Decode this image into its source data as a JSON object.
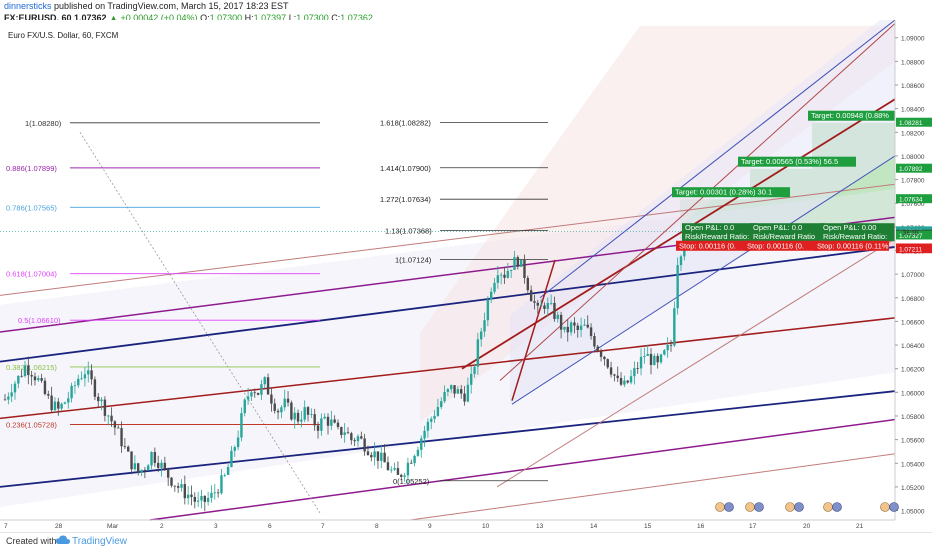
{
  "header": {
    "author": "dinnersticks",
    "published": "published on TradingView.com, March 15, 2017 18:23 EST",
    "ticker": "FX:EURUSD, 60",
    "last": "1.07362",
    "change": "▲ +0.00042 (+0.04%)",
    "o_label": "O:",
    "o": "1.07300",
    "h_label": "H:",
    "h": "1.07397",
    "l_label": "L:",
    "l": "1.07300",
    "c_label": "C:",
    "c": "1.07362"
  },
  "symbol_title": "Euro FX/U.S. Dollar, 60, FXCM",
  "footer": {
    "created_with": "Created with",
    "brand": "TradingView"
  },
  "colors": {
    "up": "#26a69a",
    "down": "#4a4a4a",
    "fib_1": "#333333",
    "fib_886": "#9c27b0",
    "fib_786": "#4aa3df",
    "fib_618": "#e040fb",
    "fib_5": "#e040fb",
    "fib_382": "#8bc34a",
    "fib_236": "#c0392b",
    "pitchfork_red": "#a21c1c",
    "pitchfork_blue": "#1a237e",
    "pitchfork_purple": "#8e1a8e",
    "target_green": "#1e9e3e",
    "stop_red": "#e02020"
  },
  "chart_data": {
    "type": "candlestick",
    "title": "Euro FX/U.S. Dollar, 60, FXCM",
    "xlabel": "",
    "ylabel": "",
    "ylim": [
      1.0492,
      1.0915
    ],
    "x_ticks": [
      "7",
      "28",
      "Mar",
      "2",
      "3",
      "6",
      "7",
      "8",
      "9",
      "10",
      "13",
      "14",
      "15",
      "16",
      "17",
      "20",
      "21"
    ],
    "y_ticks": [
      "1.05000",
      "1.05200",
      "1.05400",
      "1.05600",
      "1.05800",
      "1.06000",
      "1.06200",
      "1.06400",
      "1.06600",
      "1.06800",
      "1.07000",
      "1.07200",
      "1.07400",
      "1.07600",
      "1.07800",
      "1.08000",
      "1.08200",
      "1.08400",
      "1.08600",
      "1.08800",
      "1.09000"
    ],
    "price_labels": [
      {
        "value": 1.08281,
        "text": "1.08281",
        "color": "#1e9e3e"
      },
      {
        "value": 1.07892,
        "text": "1.07892",
        "color": "#1e9e3e"
      },
      {
        "value": 1.07634,
        "text": "1.07634",
        "color": "#1e9e3e"
      },
      {
        "value": 1.07362,
        "text": "1.07362",
        "color": "#26a69a"
      },
      {
        "value": 1.07333,
        "text": "1.07333",
        "color": "#333333"
      },
      {
        "value": 1.07327,
        "text": "1.07327",
        "color": "#1e9e3e"
      },
      {
        "value": 1.07217,
        "text": "1.07217",
        "color": "#e02020"
      },
      {
        "value": 1.07211,
        "text": "1.07211",
        "color": "#e02020"
      }
    ],
    "countdown": "36:19",
    "ohlc_path": [
      [
        0,
        1.0594
      ],
      [
        2,
        1.0605
      ],
      [
        4,
        1.0612
      ],
      [
        6,
        1.0622
      ],
      [
        8,
        1.0618
      ],
      [
        10,
        1.061
      ],
      [
        12,
        1.0598
      ],
      [
        14,
        1.059
      ],
      [
        16,
        1.0585
      ],
      [
        18,
        1.0592
      ],
      [
        20,
        1.06
      ],
      [
        22,
        1.0612
      ],
      [
        24,
        1.0618
      ],
      [
        26,
        1.0608
      ],
      [
        28,
        1.0596
      ],
      [
        30,
        1.0586
      ],
      [
        32,
        1.0576
      ],
      [
        34,
        1.0565
      ],
      [
        36,
        1.0552
      ],
      [
        38,
        1.054
      ],
      [
        40,
        1.0532
      ],
      [
        42,
        1.0537
      ],
      [
        44,
        1.0548
      ],
      [
        46,
        1.0542
      ],
      [
        48,
        1.0533
      ],
      [
        50,
        1.0526
      ],
      [
        52,
        1.052
      ],
      [
        54,
        1.0515
      ],
      [
        56,
        1.0512
      ],
      [
        58,
        1.0505
      ],
      [
        60,
        1.0508
      ],
      [
        62,
        1.0512
      ],
      [
        64,
        1.052
      ],
      [
        66,
        1.0528
      ],
      [
        68,
        1.0545
      ],
      [
        70,
        1.0565
      ],
      [
        72,
        1.059
      ],
      [
        74,
        1.0605
      ],
      [
        76,
        1.06
      ],
      [
        78,
        1.0608
      ],
      [
        80,
        1.0595
      ],
      [
        82,
        1.0585
      ],
      [
        84,
        1.059
      ],
      [
        86,
        1.0582
      ],
      [
        88,
        1.0578
      ],
      [
        90,
        1.0584
      ],
      [
        92,
        1.0576
      ],
      [
        94,
        1.0572
      ],
      [
        96,
        1.0578
      ],
      [
        98,
        1.0574
      ],
      [
        100,
        1.0566
      ],
      [
        102,
        1.0568
      ],
      [
        104,
        1.056
      ],
      [
        106,
        1.0562
      ],
      [
        108,
        1.0556
      ],
      [
        110,
        1.055
      ],
      [
        112,
        1.0546
      ],
      [
        114,
        1.054
      ],
      [
        116,
        1.0533
      ],
      [
        118,
        1.0528
      ],
      [
        120,
        1.0535
      ],
      [
        122,
        1.0545
      ],
      [
        124,
        1.0556
      ],
      [
        126,
        1.0568
      ],
      [
        128,
        1.0578
      ],
      [
        130,
        1.0588
      ],
      [
        132,
        1.0597
      ],
      [
        134,
        1.0603
      ],
      [
        136,
        1.06
      ],
      [
        138,
        1.0598
      ],
      [
        140,
        1.061
      ],
      [
        142,
        1.064
      ],
      [
        144,
        1.0665
      ],
      [
        146,
        1.069
      ],
      [
        148,
        1.0705
      ],
      [
        150,
        1.07
      ],
      [
        152,
        1.0708
      ],
      [
        154,
        1.0712
      ],
      [
        156,
        1.07
      ],
      [
        158,
        1.0682
      ],
      [
        160,
        1.0668
      ],
      [
        162,
        1.0675
      ],
      [
        164,
        1.067
      ],
      [
        166,
        1.0662
      ],
      [
        168,
        1.065
      ],
      [
        170,
        1.0656
      ],
      [
        172,
        1.0652
      ],
      [
        174,
        1.0655
      ],
      [
        176,
        1.0648
      ],
      [
        178,
        1.0638
      ],
      [
        180,
        1.063
      ],
      [
        182,
        1.062
      ],
      [
        184,
        1.0608
      ],
      [
        186,
        1.0605
      ],
      [
        188,
        1.0612
      ],
      [
        190,
        1.0622
      ],
      [
        192,
        1.0632
      ],
      [
        194,
        1.0628
      ],
      [
        196,
        1.0622
      ],
      [
        198,
        1.0632
      ],
      [
        200,
        1.064
      ],
      [
        202,
        1.0712
      ],
      [
        204,
        1.073
      ],
      [
        206,
        1.0736
      ]
    ],
    "fib_retracement": [
      {
        "label": "1(1.08280)",
        "value": 1.0828,
        "color": "#333333"
      },
      {
        "label": "0.886(1.07899)",
        "value": 1.07899,
        "color": "#9c27b0"
      },
      {
        "label": "0.786(1.07565)",
        "value": 1.07565,
        "color": "#4aa3df"
      },
      {
        "label": "0.618(1.07004)",
        "value": 1.07004,
        "color": "#e040fb"
      },
      {
        "label": "0.5(1.06610)",
        "value": 1.0661,
        "color": "#e040fb"
      },
      {
        "label": "0.382(1.06215)",
        "value": 1.06215,
        "color": "#8bc34a"
      },
      {
        "label": "0.236(1.05728)",
        "value": 1.05728,
        "color": "#c0392b"
      }
    ],
    "fib_extension": [
      {
        "label": "1.618(1.08282)",
        "value": 1.08282
      },
      {
        "label": "1.414(1.07900)",
        "value": 1.079
      },
      {
        "label": "1.272(1.07634)",
        "value": 1.07634
      },
      {
        "label": "1.13(1.07368)",
        "value": 1.07368
      },
      {
        "label": "1(1.07124)",
        "value": 1.07124
      },
      {
        "label": "0(1.05252)",
        "value": 1.05252
      }
    ],
    "positions": [
      {
        "target": "Target: 0.00301 (0.28%) 30.1",
        "open": "Open P&L: 0.0",
        "rr": "Risk/Reward Ratio:",
        "stop": "Stop: 0.00116 (0.",
        "target_value": 1.07634
      },
      {
        "target": "Target: 0.00565 (0.53%) 56.5",
        "open": "Open P&L: 0.0",
        "rr": "Risk/Reward Ratio",
        "stop": "Stop: 0.00116 (0.",
        "target_value": 1.07892
      },
      {
        "target": "Target: 0.00948 (0.88%",
        "open": "Open P&L: 0.00",
        "rr": "Risk/Reward Ratio:",
        "stop": "Stop: 0.00116 (0.11%",
        "target_value": 1.08281
      }
    ]
  }
}
